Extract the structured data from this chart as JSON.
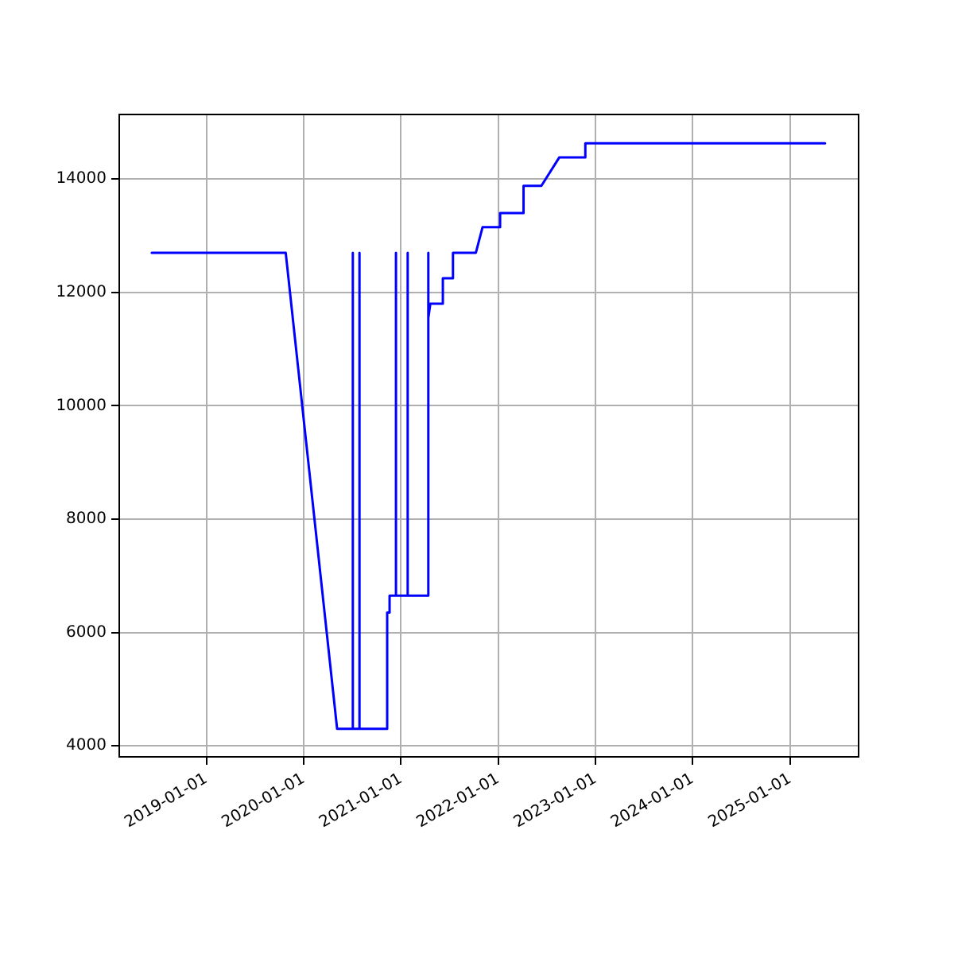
{
  "chart_data": {
    "type": "line",
    "x": [
      "2018-06-10",
      "2019-10-26",
      "2020-05-06",
      "2020-07-04",
      "2020-07-04",
      "2020-07-04",
      "2020-07-29",
      "2020-07-29",
      "2020-07-29",
      "2020-11-10",
      "2020-11-10",
      "2020-11-19",
      "2020-11-19",
      "2020-12-13",
      "2020-12-13",
      "2020-12-13",
      "2021-01-26",
      "2021-01-26",
      "2021-01-26",
      "2021-04-12",
      "2021-04-12",
      "2021-04-15",
      "2021-04-21",
      "2021-06-07",
      "2021-06-07",
      "2021-07-15",
      "2021-07-15",
      "2021-10-09",
      "2021-11-03",
      "2022-01-08",
      "2022-01-08",
      "2022-04-06",
      "2022-04-06",
      "2022-06-12",
      "2022-08-18",
      "2022-11-24",
      "2022-11-24",
      "2025-05-12"
    ],
    "series": [
      {
        "color": "#0000ff",
        "values": [
          12700,
          12700,
          4300,
          4300,
          12700,
          4300,
          4300,
          12700,
          4300,
          4300,
          6350,
          6350,
          6650,
          6650,
          12700,
          6650,
          6650,
          12700,
          6650,
          6650,
          12700,
          11550,
          11800,
          11800,
          12250,
          12250,
          12700,
          12700,
          13150,
          13150,
          13400,
          13400,
          13880,
          13880,
          14380,
          14380,
          14630,
          14630
        ]
      }
    ],
    "xlim": [
      "2018-02-08",
      "2025-09-15"
    ],
    "xticks": [
      "2019-01-01",
      "2020-01-01",
      "2021-01-01",
      "2022-01-01",
      "2023-01-01",
      "2024-01-01",
      "2025-01-01"
    ],
    "ylim": [
      3806,
      15139
    ],
    "yticks": [
      4000,
      6000,
      8000,
      10000,
      12000,
      14000
    ],
    "grid": true,
    "legend": false,
    "marker": "none",
    "line_style": "solid"
  }
}
